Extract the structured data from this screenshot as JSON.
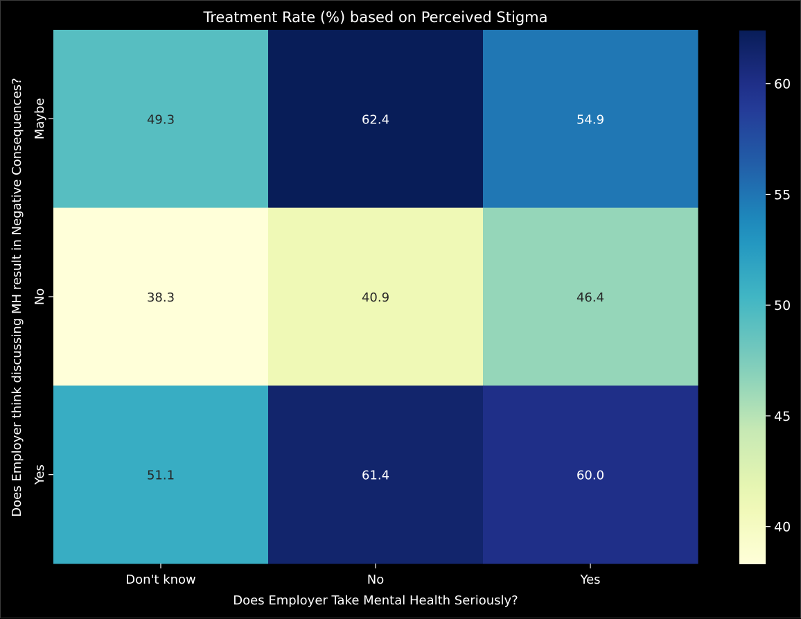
{
  "chart_data": {
    "type": "heatmap",
    "title": "Treatment Rate (%) based on Perceived Stigma",
    "xlabel": "Does Employer Take Mental Health Seriously?",
    "ylabel": "Does Employer think discussing MH result in Negative Consequences?",
    "x_categories": [
      "Don't know",
      "No",
      "Yes"
    ],
    "y_categories": [
      "Maybe",
      "No",
      "Yes"
    ],
    "values": [
      [
        49.3,
        62.4,
        54.9
      ],
      [
        38.3,
        40.9,
        46.4
      ],
      [
        51.1,
        61.4,
        60.0
      ]
    ],
    "colorscale": "YlGnBu",
    "colorbar": {
      "vmin": 38.3,
      "vmax": 62.4,
      "ticks": [
        40,
        45,
        50,
        55,
        60
      ]
    },
    "background_color": "#000000",
    "text_color": "#ffffff"
  }
}
